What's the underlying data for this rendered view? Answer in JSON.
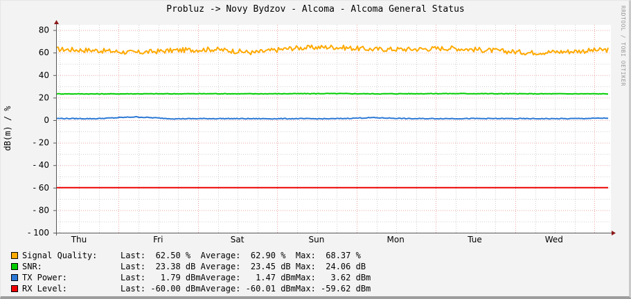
{
  "title": "Probluz -> Novy Bydzov - Alcoma - Alcoma General Status",
  "watermark": "RRDTOOL / TOBI OETIKER",
  "colors": {
    "signal_quality": "#ffaa00",
    "snr": "#00cc00",
    "tx_power": "#2b78d4",
    "rx_level": "#ee0000",
    "major_grid": "#e8a3a3",
    "minor_grid": "#cfcfcf",
    "axis": "#555555",
    "arrow": "#8b1a1a",
    "plot_bg": "#ffffff"
  },
  "legend": [
    {
      "key": "signal_quality",
      "name": "Signal Quality:",
      "last_label": "Last:",
      "last": "  62.50 %  ",
      "avg_label": "Average:",
      "avg": "  62.90 %  ",
      "max_label": "Max:",
      "max": "  68.37 %"
    },
    {
      "key": "snr",
      "name": "SNR:",
      "last_label": "Last:",
      "last": "  23.38 dB ",
      "avg_label": "Average:",
      "avg": "  23.45 dB ",
      "max_label": "Max:",
      "max": "  24.06 dB"
    },
    {
      "key": "tx_power",
      "name": "TX Power:",
      "last_label": "Last:",
      "last": "   1.79 dBm",
      "avg_label": "Average:",
      "avg": "   1.47 dBm",
      "max_label": "Max:",
      "max": "   3.62 dBm"
    },
    {
      "key": "rx_level",
      "name": "RX Level:",
      "last_label": "Last:",
      "last": " -60.00 dBm",
      "avg_label": "Average:",
      "avg": " -60.01 dBm",
      "max_label": "Max:",
      "max": " -59.62 dBm"
    }
  ],
  "chart_data": {
    "type": "line",
    "title": "Probluz -> Novy Bydzov - Alcoma - Alcoma General Status",
    "xlabel": "",
    "ylabel": "dB(m) / %",
    "ylim": [
      -100,
      85
    ],
    "yticks": [
      80,
      60,
      40,
      20,
      0,
      -20,
      -40,
      -60,
      -80,
      -100
    ],
    "xticks": [
      "Thu",
      "Fri",
      "Sat",
      "Sun",
      "Mon",
      "Tue",
      "Wed"
    ],
    "grid": true,
    "legend_position": "bottom",
    "x": [
      "Thu",
      "Thu",
      "Fri",
      "Fri",
      "Sat",
      "Sat",
      "Sun",
      "Sun",
      "Mon",
      "Mon",
      "Tue",
      "Tue",
      "Wed",
      "Wed",
      "Wed"
    ],
    "series": [
      {
        "name": "Signal Quality",
        "unit": "%",
        "values": [
          63,
          62,
          60,
          62,
          63,
          60,
          64,
          65,
          63,
          63,
          64,
          62,
          60,
          61,
          62.5
        ],
        "last": 62.5,
        "average": 62.9,
        "max": 68.37
      },
      {
        "name": "SNR",
        "unit": "dB",
        "values": [
          23.4,
          23.3,
          23.4,
          23.4,
          23.5,
          23.4,
          23.5,
          23.6,
          23.4,
          23.5,
          23.6,
          23.5,
          23.4,
          23.4,
          23.38
        ],
        "last": 23.38,
        "average": 23.45,
        "max": 24.06
      },
      {
        "name": "TX Power",
        "unit": "dBm",
        "values": [
          1.5,
          1.3,
          2.9,
          1.2,
          1.4,
          1.3,
          1.3,
          1.2,
          2.2,
          1.3,
          1.4,
          1.4,
          1.3,
          1.3,
          1.79
        ],
        "last": 1.79,
        "average": 1.47,
        "max": 3.62
      },
      {
        "name": "RX Level",
        "unit": "dBm",
        "values": [
          -60,
          -60,
          -60,
          -60,
          -60,
          -60,
          -60,
          -60,
          -60,
          -60,
          -60,
          -60,
          -60,
          -60,
          -60
        ],
        "last": -60.0,
        "average": -60.01,
        "max": -59.62
      }
    ]
  }
}
